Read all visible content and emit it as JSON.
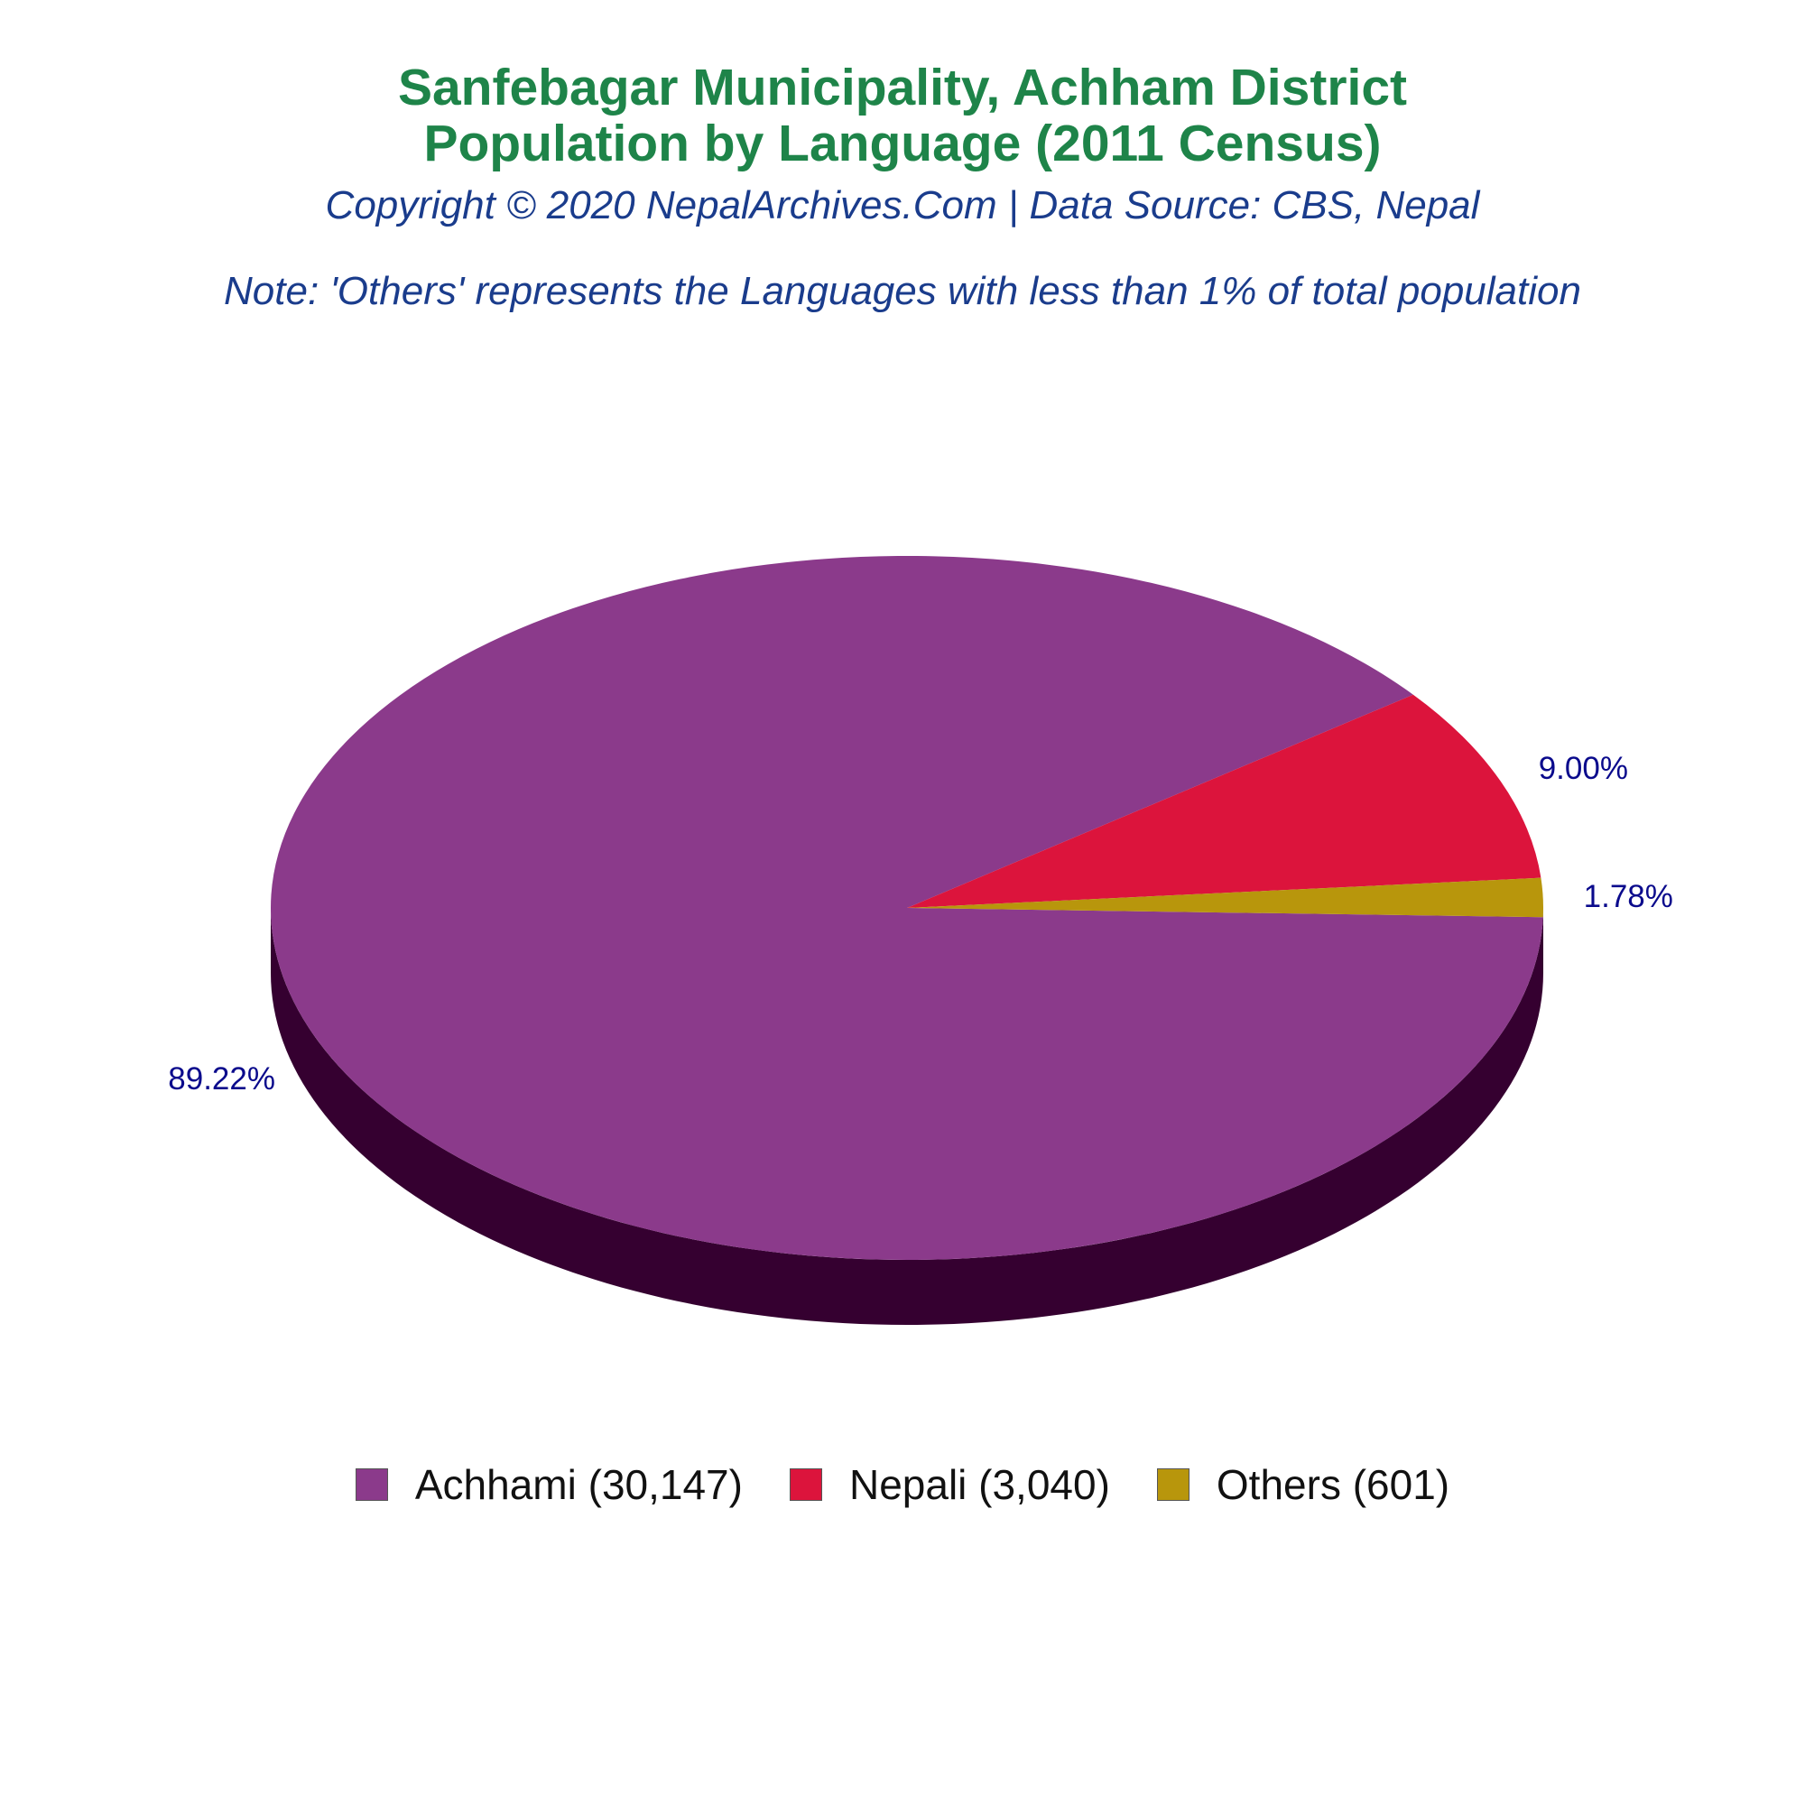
{
  "header": {
    "title_line1": "Sanfebagar Municipality, Achham District",
    "title_line2": "Population by Language (2011 Census)",
    "copyright": "Copyright © 2020 NepalArchives.Com | Data Source: CBS, Nepal",
    "note": "Note: 'Others' represents the Languages with less than 1% of total population"
  },
  "chart_data": {
    "type": "pie",
    "style": "3d",
    "categories": [
      "Achhami",
      "Nepali",
      "Others"
    ],
    "values": [
      30147,
      3040,
      601
    ],
    "percent_labels": [
      "89.22%",
      "9.00%",
      "1.78%"
    ],
    "legend_labels": [
      "Achhami (30,147)",
      "Nepali (3,040)",
      "Others (601)"
    ],
    "colors": [
      "#8b3a8b",
      "#dc143c",
      "#b8960c"
    ],
    "side_color": "#350030",
    "legend_position": "bottom"
  }
}
